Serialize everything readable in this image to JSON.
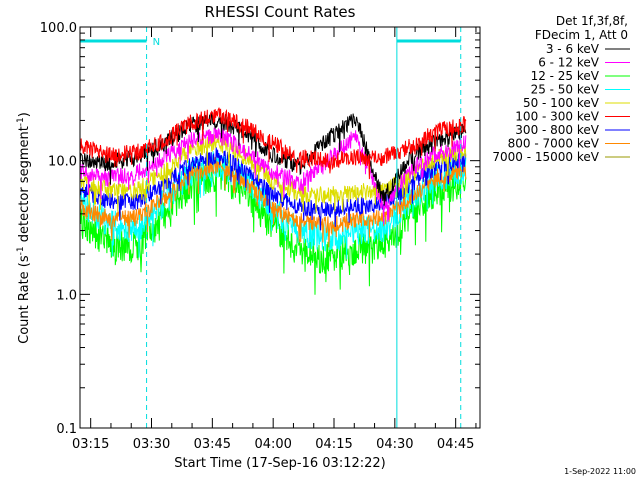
{
  "chart_data": {
    "type": "line",
    "title": "RHESSI Count Rates",
    "xlabel": "Start Time (17-Sep-16 03:12:22)",
    "ylabel_parts": [
      "Count Rate (s",
      "-1",
      " detector segment",
      "-1",
      ")"
    ],
    "y_scale": "log",
    "ylim": [
      0.1,
      100.0
    ],
    "xlim": [
      "03:12:22",
      "04:51:00"
    ],
    "y_ticks": [
      {
        "value": 0.1,
        "label": "0.1"
      },
      {
        "value": 1.0,
        "label": "1.0"
      },
      {
        "value": 10.0,
        "label": "10.0"
      },
      {
        "value": 100.0,
        "label": "100.0"
      }
    ],
    "x_ticks": [
      {
        "value": "03:15",
        "label": "03:15"
      },
      {
        "value": "03:30",
        "label": "03:30"
      },
      {
        "value": "03:45",
        "label": "03:45"
      },
      {
        "value": "04:00",
        "label": "04:00"
      },
      {
        "value": "04:15",
        "label": "04:15"
      },
      {
        "value": "04:30",
        "label": "04:30"
      },
      {
        "value": "04:45",
        "label": "04:45"
      }
    ],
    "legend_header": [
      "Det 1f,3f,8f,",
      "FDecim 1, Att 0"
    ],
    "legend_position": "right",
    "series": [
      {
        "name": "3 - 6 keV",
        "color": "#000000",
        "level": [
          10.0,
          9.6,
          10.6,
          13.2,
          18.5,
          20.5,
          16.5,
          11.0,
          9.0,
          14.5,
          21.0,
          5.2,
          10.8,
          14.2,
          17.0
        ]
      },
      {
        "name": "6 - 12 keV",
        "color": "#ff00ff",
        "level": [
          8.3,
          7.4,
          8.0,
          10.2,
          14.5,
          15.5,
          12.0,
          8.2,
          6.8,
          10.0,
          15.5,
          4.6,
          8.6,
          11.5,
          13.5
        ]
      },
      {
        "name": "12 - 25 keV",
        "color": "#00ff00",
        "level": [
          3.6,
          2.5,
          2.2,
          3.6,
          6.7,
          8.0,
          6.0,
          3.2,
          2.0,
          1.9,
          2.2,
          2.3,
          4.0,
          6.2,
          6.8
        ]
      },
      {
        "name": "25 - 50 keV",
        "color": "#00ffff",
        "level": [
          4.9,
          3.4,
          3.0,
          4.7,
          8.2,
          9.6,
          7.3,
          4.2,
          2.9,
          2.7,
          3.0,
          3.1,
          5.3,
          7.7,
          8.6
        ]
      },
      {
        "name": "50 - 100 keV",
        "color": "#dddd00",
        "level": [
          7.2,
          6.0,
          5.9,
          8.2,
          12.0,
          13.8,
          10.6,
          7.0,
          5.7,
          5.5,
          5.9,
          5.9,
          7.9,
          10.6,
          11.9
        ]
      },
      {
        "name": "100 - 300 keV",
        "color": "#ff0000",
        "level": [
          13.0,
          11.0,
          11.4,
          14.0,
          19.0,
          22.0,
          18.0,
          13.5,
          10.5,
          10.0,
          10.6,
          10.4,
          13.0,
          16.5,
          19.0
        ]
      },
      {
        "name": "300 - 800 keV",
        "color": "#0000ff",
        "level": [
          6.2,
          5.0,
          4.9,
          6.6,
          9.6,
          11.0,
          8.6,
          5.5,
          4.5,
          4.3,
          4.6,
          4.7,
          6.6,
          9.3,
          10.3
        ]
      },
      {
        "name": "800 - 7000 keV",
        "color": "#ff8800",
        "level": [
          4.5,
          3.7,
          3.7,
          5.1,
          7.9,
          9.4,
          7.0,
          4.4,
          3.5,
          3.3,
          3.6,
          3.7,
          5.3,
          7.6,
          8.4
        ]
      },
      {
        "name": "7000 - 15000 keV",
        "color": "#999900",
        "level": [
          0,
          0,
          0,
          0,
          0,
          0,
          0,
          0,
          0,
          0,
          0,
          0,
          0,
          0,
          0
        ]
      }
    ],
    "attenuator_markers": [
      {
        "label": "N",
        "start": "03:12:22",
        "end": "03:28:47"
      },
      {
        "label": "",
        "start": "04:30:30",
        "end": "04:46:15"
      }
    ]
  },
  "footer": {
    "timestamp": "1-Sep-2022 11:00"
  }
}
